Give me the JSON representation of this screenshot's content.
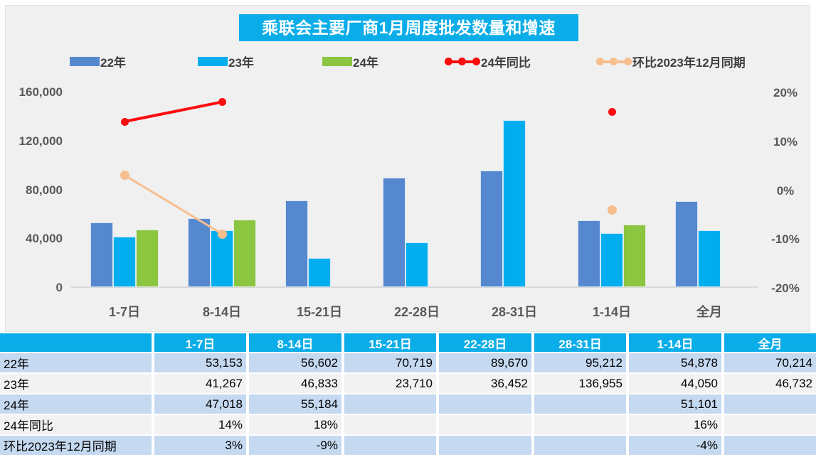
{
  "title": "乘联会主要厂商1月周度批发数量和增速",
  "colors": {
    "title_bg": "#0badE8",
    "chart_bg": "#f0f0f1",
    "bar_22": "#5588cf",
    "bar_23": "#00aeef",
    "bar_24": "#8cc540",
    "line_yoy": "#fb0d0d",
    "line_mom": "#f7be8e",
    "table_header_bg": "#0badE8",
    "table_row_blue": "#c5d9f1",
    "table_row_gray": "#f2f2f2",
    "axis_text": "#595959"
  },
  "legend": [
    {
      "label": "22年",
      "type": "bar",
      "color": "#5588cf"
    },
    {
      "label": "23年",
      "type": "bar",
      "color": "#00aeef"
    },
    {
      "label": "24年",
      "type": "bar",
      "color": "#8cc540"
    },
    {
      "label": "24年同比",
      "type": "line",
      "color": "#fb0d0d"
    },
    {
      "label": "环比2023年12月同期",
      "type": "line",
      "color": "#f7be8e"
    }
  ],
  "chart_data": {
    "type": "bar",
    "subtype": "combo-bar-line-dual-axis",
    "title": "乘联会主要厂商1月周度批发数量和增速",
    "categories": [
      "1-7日",
      "8-14日",
      "15-21日",
      "22-28日",
      "28-31日",
      "1-14日",
      "全月"
    ],
    "series": [
      {
        "name": "22年",
        "axis": "left",
        "kind": "bar",
        "color": "#5588cf",
        "values": [
          53153,
          56602,
          70719,
          89670,
          95212,
          54878,
          70214
        ]
      },
      {
        "name": "23年",
        "axis": "left",
        "kind": "bar",
        "color": "#00aeef",
        "values": [
          41267,
          46833,
          23710,
          36452,
          136955,
          44050,
          46732
        ]
      },
      {
        "name": "24年",
        "axis": "left",
        "kind": "bar",
        "color": "#8cc540",
        "values": [
          47018,
          55184,
          null,
          null,
          null,
          51101,
          null
        ]
      },
      {
        "name": "24年同比",
        "axis": "right",
        "kind": "line",
        "color": "#fb0d0d",
        "values": [
          14,
          18,
          null,
          null,
          null,
          16,
          null
        ]
      },
      {
        "name": "环比2023年12月同期",
        "axis": "right",
        "kind": "line",
        "color": "#f7be8e",
        "values": [
          3,
          -9,
          null,
          null,
          null,
          -4,
          null
        ]
      }
    ],
    "left_axis": {
      "min": 0,
      "max": 160000,
      "tick_values": [
        0,
        40000,
        80000,
        120000,
        160000
      ],
      "tick_labels": [
        "0",
        "40,000",
        "80,000",
        "120,000",
        "160,000"
      ]
    },
    "right_axis": {
      "min": -20,
      "max": 20,
      "tick_values": [
        -20,
        -10,
        0,
        10,
        20
      ],
      "tick_labels": [
        "-20%",
        "-10%",
        "0%",
        "10%",
        "20%"
      ]
    },
    "grid": false,
    "legend_position": "top"
  },
  "table": {
    "col_headers": [
      "",
      "1-7日",
      "8-14日",
      "15-21日",
      "22-28日",
      "28-31日",
      "1-14日",
      "全月"
    ],
    "rows": [
      {
        "label": "22年",
        "cells": [
          "53,153",
          "56,602",
          "70,719",
          "89,670",
          "95,212",
          "54,878",
          "70,214"
        ]
      },
      {
        "label": "23年",
        "cells": [
          "41,267",
          "46,833",
          "23,710",
          "36,452",
          "136,955",
          "44,050",
          "46,732"
        ]
      },
      {
        "label": "24年",
        "cells": [
          "47,018",
          "55,184",
          "",
          "",
          "",
          "51,101",
          ""
        ]
      },
      {
        "label": "24年同比",
        "cells": [
          "14%",
          "18%",
          "",
          "",
          "",
          "16%",
          ""
        ]
      },
      {
        "label": "环比2023年12月同期",
        "cells": [
          "3%",
          "-9%",
          "",
          "",
          "",
          "-4%",
          ""
        ]
      }
    ]
  }
}
